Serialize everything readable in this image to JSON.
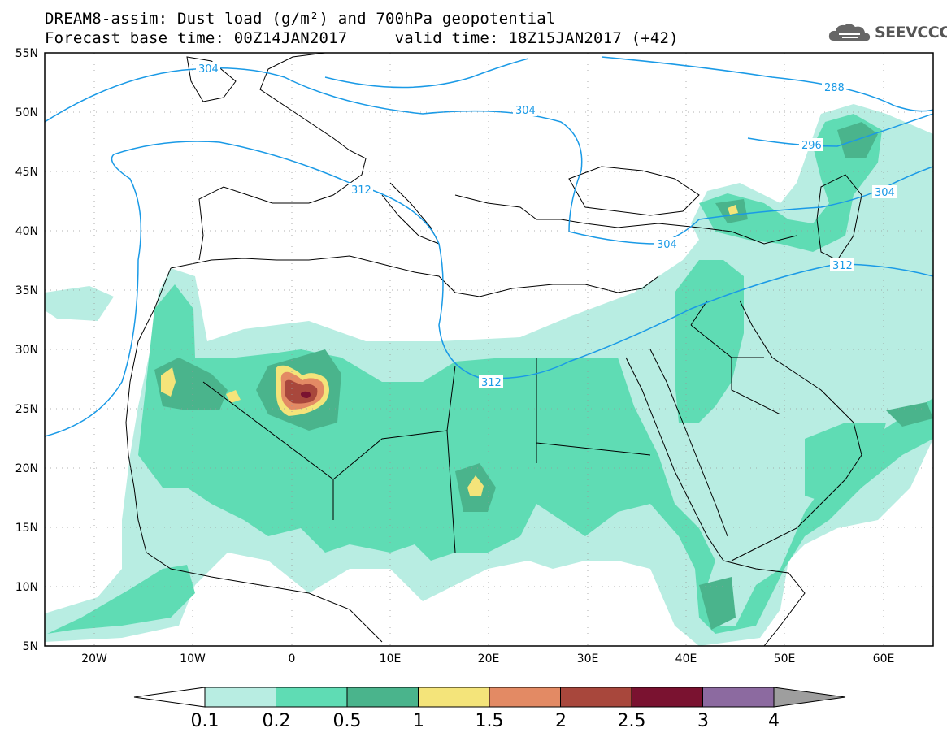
{
  "header": {
    "title_line_1": "DREAM8-assim: Dust load (g/m²) and 700hPa geopotential",
    "title_line_2": "Forecast base time: 00Z14JAN2017     valid time: 18Z15JAN2017 (+42)"
  },
  "logo": {
    "text": "SEEVCCC",
    "icon": "cloud-icon"
  },
  "map": {
    "lat_labels": [
      "55N",
      "50N",
      "45N",
      "40N",
      "35N",
      "30N",
      "25N",
      "20N",
      "15N",
      "10N",
      "5N"
    ],
    "lon_labels": [
      "20W",
      "10W",
      "0",
      "10E",
      "20E",
      "30E",
      "40E",
      "50E",
      "60E"
    ],
    "contour_labels": [
      "304",
      "288",
      "304",
      "296",
      "312",
      "304",
      "304",
      "312",
      "312"
    ],
    "colors": {
      "contour": "#1a9ae6",
      "level_1": "#b8ede2",
      "level_2": "#5fdcb4",
      "level_3": "#4ab48c",
      "level_4": "#f4e47a",
      "level_5": "#e38a64",
      "level_6": "#a8473c",
      "level_7": "#7a1230"
    }
  },
  "colorbar": {
    "labels": [
      "0.1",
      "0.2",
      "0.5",
      "1",
      "1.5",
      "2",
      "2.5",
      "3",
      "4"
    ],
    "colors": [
      "#b8ede2",
      "#5fdcb4",
      "#4ab48c",
      "#f4e47a",
      "#e38a64",
      "#a8473c",
      "#7a1230",
      "#8c6aa0"
    ],
    "arrow_left_color": "#ffffff",
    "arrow_right_color": "#9e9e9e"
  }
}
